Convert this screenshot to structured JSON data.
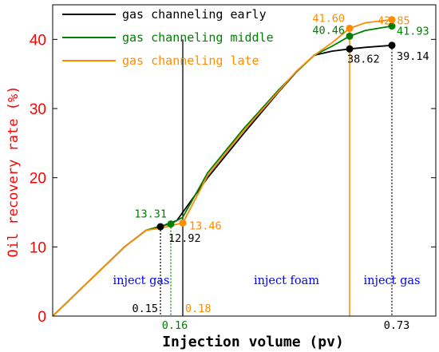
{
  "chart_data": {
    "type": "line",
    "xlabel": "Injection volume (pv)",
    "ylabel": "Oil recovery rate (%)",
    "ylim": [
      0,
      45
    ],
    "yticks": [
      "0",
      "10",
      "20",
      "30",
      "40"
    ],
    "xticks": [
      "0.15",
      "0.16",
      "0.18",
      "0.73"
    ],
    "legend_position": "top-left",
    "series": [
      {
        "name": "gas channeling early",
        "color": "#000000",
        "x": [
          0,
          0.1,
          0.13,
          0.15,
          0.17,
          0.25,
          0.35,
          0.45,
          0.5,
          0.55,
          0.6,
          0.65,
          0.68,
          0.73
        ],
        "y": [
          0,
          10.0,
          12.4,
          12.92,
          13.8,
          20.0,
          26.3,
          32.4,
          35.3,
          37.7,
          38.3,
          38.62,
          38.85,
          39.14
        ]
      },
      {
        "name": "gas channeling middle",
        "color": "#008000",
        "x": [
          0,
          0.1,
          0.13,
          0.15,
          0.16,
          0.18,
          0.25,
          0.35,
          0.45,
          0.5,
          0.55,
          0.6,
          0.65,
          0.68,
          0.73
        ],
        "y": [
          0,
          10.0,
          12.4,
          13.0,
          13.31,
          14.3,
          20.7,
          27.0,
          32.7,
          35.3,
          37.7,
          39.0,
          40.46,
          41.3,
          41.93
        ]
      },
      {
        "name": "gas channeling late",
        "color": "#ff8c00",
        "x": [
          0,
          0.1,
          0.13,
          0.15,
          0.18,
          0.25,
          0.35,
          0.45,
          0.5,
          0.55,
          0.6,
          0.65,
          0.68,
          0.73
        ],
        "y": [
          0,
          10.0,
          12.4,
          12.7,
          13.46,
          20.3,
          26.7,
          32.5,
          35.4,
          37.7,
          39.5,
          41.6,
          42.4,
          42.85
        ]
      }
    ],
    "points": [
      {
        "label": "12.92",
        "x": 0.15,
        "y": 12.92,
        "color": "#000000"
      },
      {
        "label": "13.31",
        "x": 0.16,
        "y": 13.31,
        "color": "#008000"
      },
      {
        "label": "13.46",
        "x": 0.18,
        "y": 13.46,
        "color": "#ff8c00"
      },
      {
        "label": "38.62",
        "x": 0.65,
        "y": 38.62,
        "color": "#000000"
      },
      {
        "label": "39.14",
        "x": 0.73,
        "y": 39.14,
        "color": "#000000"
      },
      {
        "label": "40.46",
        "x": 0.65,
        "y": 40.46,
        "color": "#008000"
      },
      {
        "label": "41.93",
        "x": 0.73,
        "y": 41.93,
        "color": "#008000"
      },
      {
        "label": "41.60",
        "x": 0.65,
        "y": 41.6,
        "color": "#ff8c00"
      },
      {
        "label": "42.85",
        "x": 0.73,
        "y": 42.85,
        "color": "#ff8c00"
      }
    ],
    "regions": [
      {
        "label": "inject gas",
        "color": "#0000ff"
      },
      {
        "label": "inject foam",
        "color": "#0000ff"
      },
      {
        "label": "inject gas",
        "color": "#0000ff"
      }
    ]
  }
}
